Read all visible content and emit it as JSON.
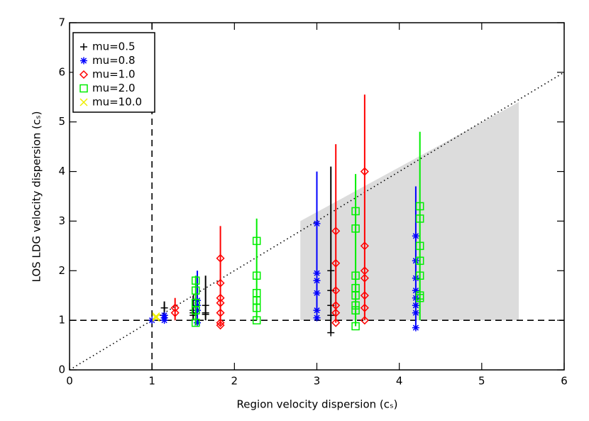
{
  "chart_data": {
    "type": "scatter",
    "xlabel": "Region velocity dispersion (cₛ)",
    "ylabel": "LOS LDG velocity dispersion (cₛ)",
    "xlim": [
      0,
      6
    ],
    "ylim": [
      0,
      7
    ],
    "xticks": [
      0,
      1,
      2,
      3,
      4,
      5,
      6
    ],
    "yticks": [
      0,
      1,
      2,
      3,
      4,
      5,
      6,
      7
    ],
    "legend": "upper left",
    "reference_lines": [
      {
        "orientation": "horizontal",
        "value": 1,
        "style": "dashed"
      },
      {
        "orientation": "vertical",
        "value": 1,
        "style": "dashed"
      },
      {
        "orientation": "diagonal",
        "value": 1,
        "style": "dotted"
      }
    ],
    "shaded_region": {
      "color": "#dcdcdc",
      "x": [
        2.8,
        5.45
      ],
      "y_low": 1,
      "y_high": [
        3.0,
        5.4
      ]
    },
    "series": [
      {
        "name": "mu=0.5",
        "color": "#000000",
        "marker": "plus",
        "x": [
          1.15,
          1.15,
          1.15,
          1.5,
          1.5,
          1.5,
          1.65,
          1.65,
          1.65,
          3.17,
          3.17,
          3.17,
          3.17,
          3.17
        ],
        "values": [
          1.25,
          1.1,
          1.05,
          1.2,
          1.15,
          1.1,
          1.3,
          1.15,
          1.12,
          2.0,
          1.6,
          1.3,
          1.1,
          0.75
        ],
        "errors": [
          {
            "x": 1.15,
            "low": 1.0,
            "high": 1.38
          },
          {
            "x": 1.5,
            "low": 1.0,
            "high": 1.5
          },
          {
            "x": 1.65,
            "low": 1.0,
            "high": 1.9
          },
          {
            "x": 3.17,
            "low": 0.75,
            "high": 4.1
          }
        ]
      },
      {
        "name": "mu=0.8",
        "color": "#0000ff",
        "marker": "asterisk",
        "x": [
          1.0,
          1.15,
          1.15,
          1.15,
          1.55,
          1.55,
          1.55,
          1.55,
          3.0,
          3.0,
          3.0,
          3.0,
          3.0,
          3.0,
          4.2,
          4.2,
          4.2,
          4.2,
          4.2,
          4.2,
          4.2,
          4.2
        ],
        "values": [
          1.0,
          1.1,
          1.05,
          1.0,
          1.4,
          1.3,
          1.2,
          0.95,
          2.95,
          1.95,
          1.8,
          1.55,
          1.2,
          1.05,
          2.7,
          2.2,
          1.85,
          1.6,
          1.45,
          1.3,
          1.15,
          0.85
        ],
        "errors": [
          {
            "x": 1.55,
            "low": 0.95,
            "high": 2.0
          },
          {
            "x": 3.0,
            "low": 1.0,
            "high": 4.0
          },
          {
            "x": 4.2,
            "low": 0.85,
            "high": 3.7
          }
        ]
      },
      {
        "name": "mu=1.0",
        "color": "#ff0000",
        "marker": "diamond",
        "x": [
          1.28,
          1.28,
          1.83,
          1.83,
          1.83,
          1.83,
          1.83,
          1.83,
          1.83,
          3.23,
          3.23,
          3.23,
          3.23,
          3.23,
          3.23,
          3.58,
          3.58,
          3.58,
          3.58,
          3.58,
          3.58,
          3.58
        ],
        "values": [
          1.25,
          1.15,
          2.25,
          1.75,
          1.45,
          1.35,
          1.15,
          0.95,
          0.9,
          2.8,
          2.15,
          1.6,
          1.3,
          1.15,
          0.95,
          4.0,
          2.5,
          2.0,
          1.85,
          1.5,
          1.25,
          1.0
        ],
        "errors": [
          {
            "x": 1.28,
            "low": 1.0,
            "high": 1.45
          },
          {
            "x": 1.83,
            "low": 0.9,
            "high": 2.9
          },
          {
            "x": 3.23,
            "low": 0.95,
            "high": 4.55
          },
          {
            "x": 3.58,
            "low": 1.0,
            "high": 5.55
          }
        ]
      },
      {
        "name": "mu=2.0",
        "color": "#00ee00",
        "marker": "square",
        "x": [
          1.53,
          1.53,
          1.53,
          1.53,
          1.53,
          2.27,
          2.27,
          2.27,
          2.27,
          2.27,
          2.27,
          3.47,
          3.47,
          3.47,
          3.47,
          3.47,
          3.47,
          3.47,
          3.47,
          4.25,
          4.25,
          4.25,
          4.25,
          4.25,
          4.25,
          4.25
        ],
        "values": [
          1.8,
          1.6,
          1.35,
          1.2,
          0.95,
          2.6,
          1.9,
          1.55,
          1.4,
          1.25,
          1.0,
          3.2,
          2.85,
          1.9,
          1.65,
          1.5,
          1.3,
          1.2,
          0.88,
          3.3,
          3.05,
          2.5,
          2.2,
          1.9,
          1.5,
          1.45
        ],
        "errors": [
          {
            "x": 1.53,
            "low": 0.9,
            "high": 1.9
          },
          {
            "x": 2.27,
            "low": 1.0,
            "high": 3.05
          },
          {
            "x": 3.47,
            "low": 0.88,
            "high": 3.95
          },
          {
            "x": 4.25,
            "low": 1.0,
            "high": 4.8
          }
        ]
      },
      {
        "name": "mu=10.0",
        "color": "#eeee00",
        "marker": "x",
        "x": [
          1.05,
          1.05
        ],
        "values": [
          1.05,
          1.08
        ],
        "errors": []
      }
    ]
  }
}
